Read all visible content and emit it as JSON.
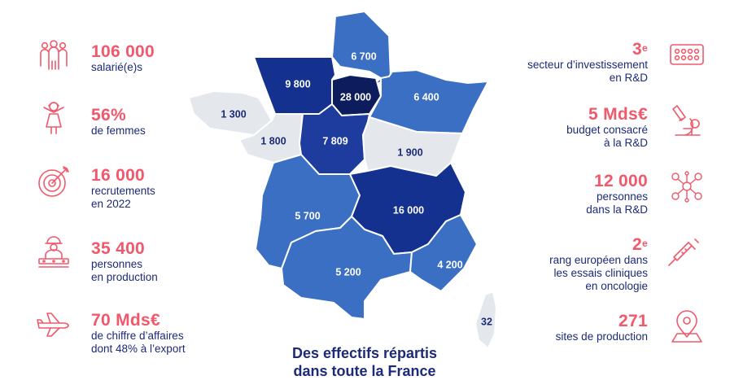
{
  "left_stats": [
    {
      "value": "106 000",
      "label": "salarié(e)s",
      "icon": "people-group-icon"
    },
    {
      "value": "56%",
      "label": "de femmes",
      "icon": "woman-icon"
    },
    {
      "value": "16 000",
      "label": "recrutements\nen 2022",
      "icon": "target-icon"
    },
    {
      "value": "35 400",
      "label": "personnes\nen production",
      "icon": "production-worker-icon"
    },
    {
      "value": "70 Mds€",
      "label": "de chiffre d’affaires\ndont 48% à l’export",
      "icon": "airplane-icon"
    }
  ],
  "right_stats": [
    {
      "value": "3",
      "sup": "e",
      "label": "secteur d’investissement\nen R&D",
      "icon": "pill-blister-icon"
    },
    {
      "value": "5 Mds€",
      "label": "budget consacré\nà la R&D",
      "icon": "microscope-icon"
    },
    {
      "value": "12 000",
      "label": "personnes\ndans la R&D",
      "icon": "network-people-icon"
    },
    {
      "value": "2",
      "sup": "e",
      "label": "rang européen dans\nles essais cliniques\nen oncologie",
      "icon": "syringe-icon"
    },
    {
      "value": "271",
      "label": "sites de production",
      "icon": "location-pin-icon"
    }
  ],
  "map": {
    "regions": [
      {
        "id": "hauts-de-france",
        "value": "6 700",
        "color": "#3a6fc4"
      },
      {
        "id": "normandie",
        "value": "9 800",
        "color": "#14318f"
      },
      {
        "id": "ile-de-france",
        "value": "28 000",
        "color": "#0d1c5c"
      },
      {
        "id": "grand-est",
        "value": "6 400",
        "color": "#3a6fc4"
      },
      {
        "id": "bretagne",
        "value": "1 300",
        "color": "#e4e8ed"
      },
      {
        "id": "pays-de-la-loire",
        "value": "1 800",
        "color": "#e4e8ed"
      },
      {
        "id": "centre-val-de-loire",
        "value": "7 809",
        "color": "#1d3c9e"
      },
      {
        "id": "bourgogne-franche-comte",
        "value": "1 900",
        "color": "#e4e8ed"
      },
      {
        "id": "nouvelle-aquitaine",
        "value": "5 700",
        "color": "#3a6fc4"
      },
      {
        "id": "auvergne-rhone-alpes",
        "value": "16 000",
        "color": "#14318f"
      },
      {
        "id": "occitanie",
        "value": "5 200",
        "color": "#3a6fc4"
      },
      {
        "id": "provence-alpes-cote-dazur",
        "value": "4 200",
        "color": "#3a6fc4"
      },
      {
        "id": "corse",
        "value": "32",
        "color": "#e4e8ed"
      }
    ],
    "caption": "Des effectifs répartis\ndans toute la France"
  },
  "colors": {
    "accent": "#f0596b",
    "navy": "#1c2a78",
    "light_region": "#e4e8ed"
  }
}
